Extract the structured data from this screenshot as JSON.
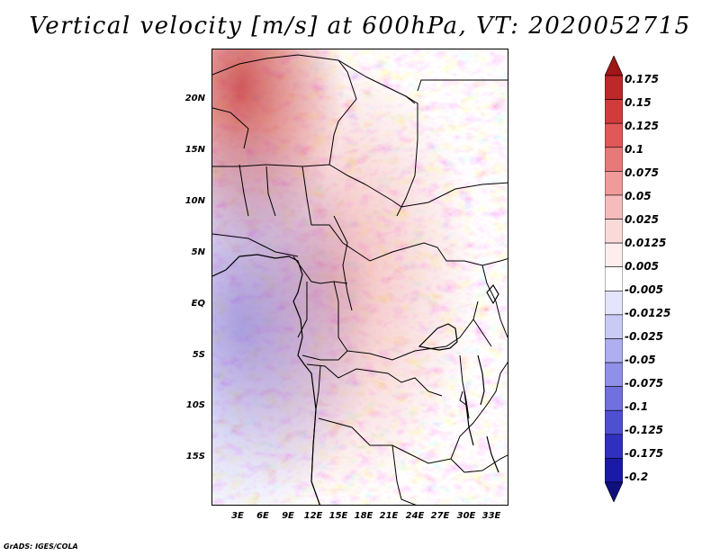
{
  "title": "Vertical velocity [m/s] at 600hPa, VT: 2020052715",
  "credit": "GrADS: IGES/COLA",
  "lat_labels": [
    "20N",
    "15N",
    "10N",
    "5N",
    "EQ",
    "5S",
    "10S",
    "15S"
  ],
  "lon_labels": [
    "3E",
    "6E",
    "9E",
    "12E",
    "15E",
    "18E",
    "21E",
    "24E",
    "27E",
    "30E",
    "33E"
  ],
  "colorbar": {
    "labels": [
      "0.175",
      "0.15",
      "0.125",
      "0.1",
      "0.075",
      "0.05",
      "0.025",
      "0.0125",
      "0.005",
      "-0.005",
      "-0.0125",
      "-0.025",
      "-0.05",
      "-0.075",
      "-0.1",
      "-0.125",
      "-0.175",
      "-0.2"
    ],
    "colors": [
      "#a11616",
      "#bd2828",
      "#d23b3b",
      "#e05858",
      "#e87979",
      "#f09a9a",
      "#f6bcbc",
      "#fad9d9",
      "#fdeeee",
      "#ffffff",
      "#e4e4fb",
      "#cacaf6",
      "#aeaef0",
      "#9090e8",
      "#7070de",
      "#4f4fd2",
      "#3030bf",
      "#1a1aa6",
      "#10107d"
    ]
  },
  "chart_data": {
    "type": "heatmap",
    "title": "Vertical velocity [m/s] at 600hPa, VT: 2020052715",
    "variable": "Vertical velocity",
    "units": "m/s",
    "level": "600hPa",
    "valid_time": "2020052715",
    "x_ticks": [
      "3E",
      "6E",
      "9E",
      "12E",
      "15E",
      "18E",
      "21E",
      "24E",
      "27E",
      "30E",
      "33E"
    ],
    "y_ticks": [
      "20N",
      "15N",
      "10N",
      "5N",
      "EQ",
      "5S",
      "10S",
      "15S"
    ],
    "lon_range": [
      0,
      35
    ],
    "lat_range": [
      -20,
      25
    ],
    "color_levels": [
      -0.2,
      -0.175,
      -0.125,
      -0.1,
      -0.075,
      -0.05,
      -0.025,
      -0.0125,
      -0.005,
      0.005,
      0.0125,
      0.025,
      0.05,
      0.075,
      0.1,
      0.125,
      0.15,
      0.175
    ]
  }
}
